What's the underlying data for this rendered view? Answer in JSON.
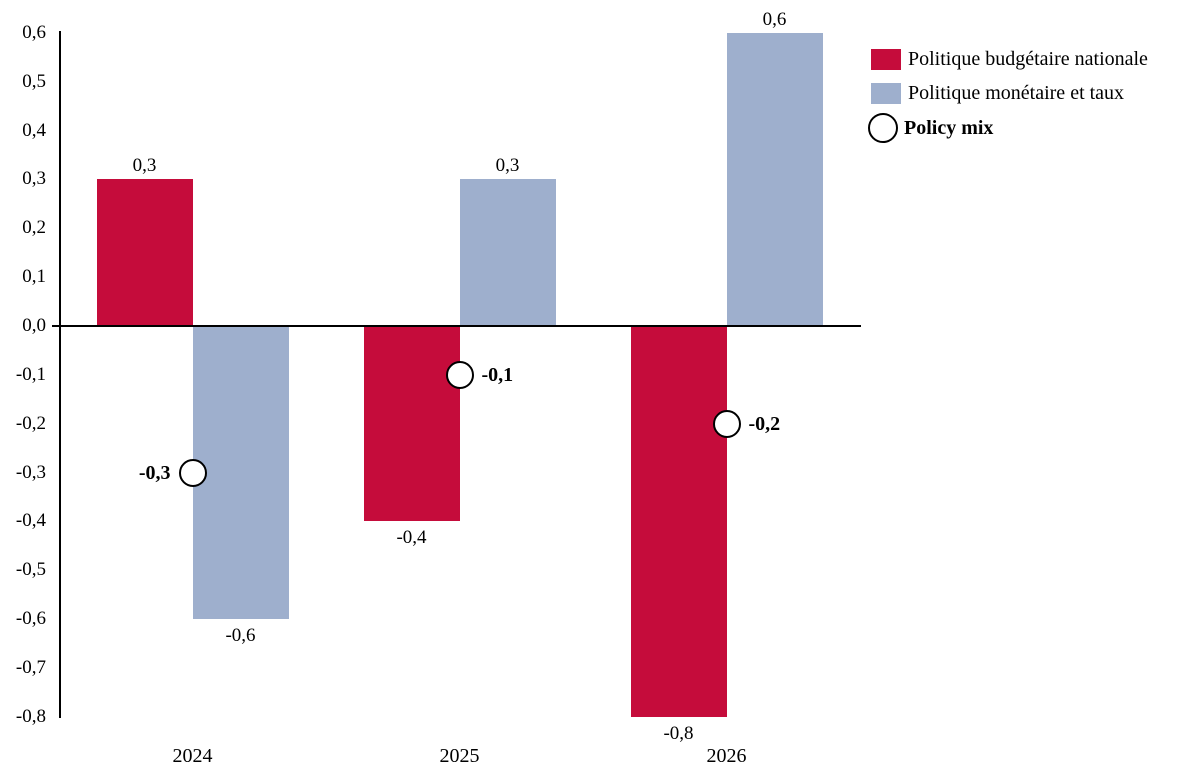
{
  "chart_data": {
    "type": "bar",
    "title": "",
    "xlabel": "",
    "ylabel": "",
    "categories": [
      "2024",
      "2025",
      "2026"
    ],
    "series": [
      {
        "name": "Politique budgétaire nationale",
        "type": "bar",
        "color": "#C50C3B",
        "values": [
          0.3,
          -0.4,
          -0.8
        ],
        "labels": [
          "0,3",
          "-0,4",
          "-0,8"
        ]
      },
      {
        "name": "Politique monétaire et taux",
        "type": "bar",
        "color": "#9EAFCD",
        "values": [
          -0.6,
          0.3,
          0.6
        ],
        "labels": [
          "-0,6",
          "0,3",
          "0,6"
        ]
      },
      {
        "name": "Policy mix",
        "type": "circle-marker",
        "marker_fill": "#FFFFFF",
        "marker_stroke": "#000000",
        "values": [
          -0.3,
          -0.1,
          -0.2
        ],
        "labels": [
          "-0,3",
          "-0,1",
          "-0,2"
        ],
        "label_side": [
          "left",
          "right",
          "right"
        ]
      }
    ],
    "ylim": [
      -0.8,
      0.6
    ],
    "ytick_step": 0.1,
    "ytick_labels": [
      "0,6",
      "0,5",
      "0,4",
      "0,3",
      "0,2",
      "0,1",
      "0,0",
      "-0,1",
      "-0,2",
      "-0,3",
      "-0,4",
      "-0,5",
      "-0,6",
      "-0,7",
      "-0,8"
    ],
    "decimal_separator": ",",
    "grid": false,
    "legend_position": "top-right"
  },
  "legend": {
    "items": [
      {
        "label": "Politique budgétaire nationale",
        "swatch": "square",
        "color": "#C50C3B",
        "bold": false
      },
      {
        "label": "Politique monétaire et taux",
        "swatch": "square",
        "color": "#9EAFCD",
        "bold": false
      },
      {
        "label": "Policy mix",
        "swatch": "circle",
        "color": "#FFFFFF",
        "bold": true
      }
    ]
  }
}
